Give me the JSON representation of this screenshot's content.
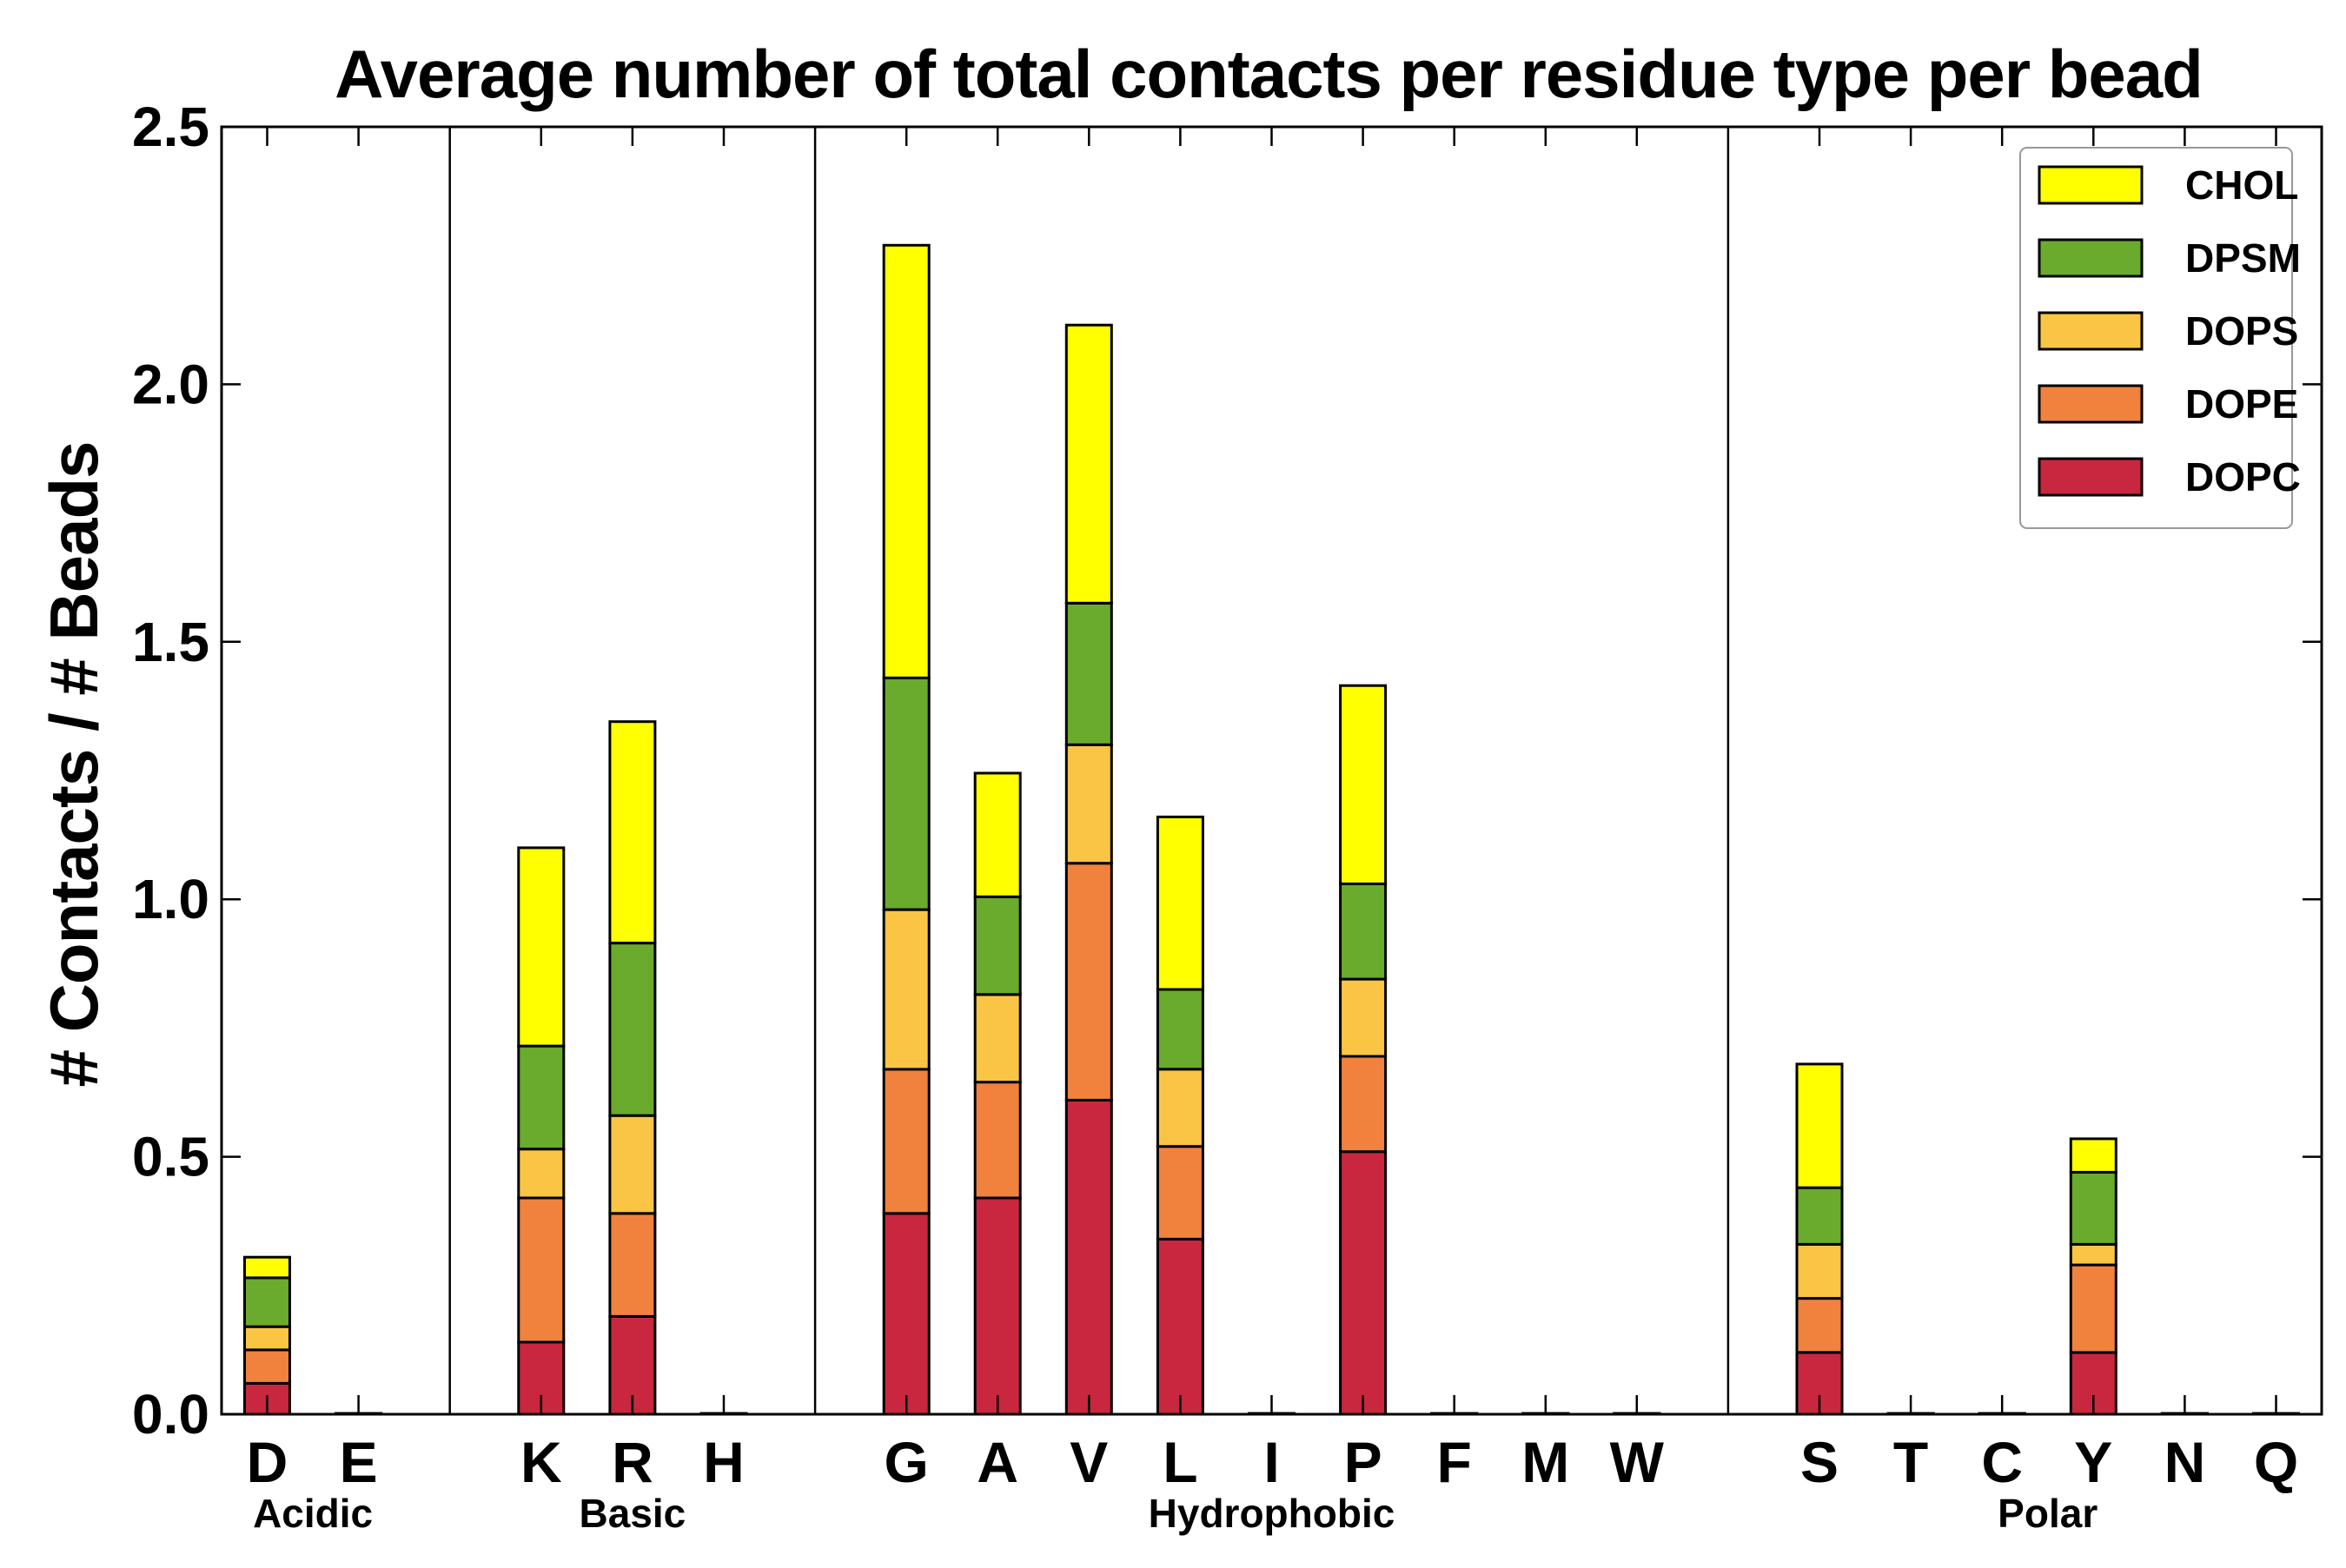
{
  "chart_data": {
    "type": "bar",
    "stacked": true,
    "title": "Average number of total contacts per residue type per bead",
    "ylabel": "# Contacts / # Beads",
    "xlabel": "",
    "ylim": [
      0,
      2.5
    ],
    "yticks": [
      "0.0",
      "0.5",
      "1.0",
      "1.5",
      "2.0",
      "2.5"
    ],
    "ytick_values": [
      0,
      0.5,
      1.0,
      1.5,
      2.0,
      2.5
    ],
    "slots": [
      "D",
      "E",
      "",
      "K",
      "R",
      "H",
      "",
      "G",
      "A",
      "V",
      "L",
      "I",
      "P",
      "F",
      "M",
      "W",
      "",
      "S",
      "T",
      "C",
      "Y",
      "N",
      "Q"
    ],
    "groups": [
      {
        "label": "Acidic",
        "first": 0,
        "last": 1
      },
      {
        "label": "Basic",
        "first": 3,
        "last": 5
      },
      {
        "label": "Hydrophobic",
        "first": 7,
        "last": 15
      },
      {
        "label": "Polar",
        "first": 17,
        "last": 22
      }
    ],
    "separators_after_slot": [
      2,
      6,
      16
    ],
    "series": [
      {
        "name": "DOPC",
        "color": "#c8273f",
        "values": [
          0.06,
          0,
          0,
          0.14,
          0.19,
          0,
          0,
          0.39,
          0.42,
          0.61,
          0.34,
          0,
          0.51,
          0,
          0,
          0,
          0,
          0.12,
          0,
          0,
          0.12,
          0,
          0
        ]
      },
      {
        "name": "DOPE",
        "color": "#f0823e",
        "values": [
          0.065,
          0,
          0,
          0.28,
          0.2,
          0,
          0,
          0.28,
          0.225,
          0.46,
          0.18,
          0,
          0.185,
          0,
          0,
          0,
          0,
          0.105,
          0,
          0,
          0.17,
          0,
          0
        ]
      },
      {
        "name": "DOPS",
        "color": "#fac545",
        "values": [
          0.045,
          0,
          0,
          0.095,
          0.19,
          0,
          0,
          0.31,
          0.17,
          0.23,
          0.15,
          0,
          0.15,
          0,
          0,
          0,
          0,
          0.105,
          0,
          0,
          0.04,
          0,
          0
        ]
      },
      {
        "name": "DPSM",
        "color": "#6aaa2d",
        "values": [
          0.095,
          0,
          0,
          0.2,
          0.335,
          0,
          0,
          0.45,
          0.19,
          0.275,
          0.155,
          0,
          0.185,
          0,
          0,
          0,
          0,
          0.11,
          0,
          0,
          0.14,
          0,
          0
        ]
      },
      {
        "name": "CHOL",
        "color": "#ffff00",
        "values": [
          0.04,
          0,
          0,
          0.385,
          0.43,
          0,
          0,
          0.84,
          0.24,
          0.54,
          0.335,
          0,
          0.385,
          0,
          0,
          0,
          0,
          0.24,
          0,
          0,
          0.065,
          0,
          0
        ]
      }
    ],
    "legend_order": [
      "CHOL",
      "DPSM",
      "DOPS",
      "DOPE",
      "DOPC"
    ],
    "legend_position": "top-right",
    "grid": false
  }
}
